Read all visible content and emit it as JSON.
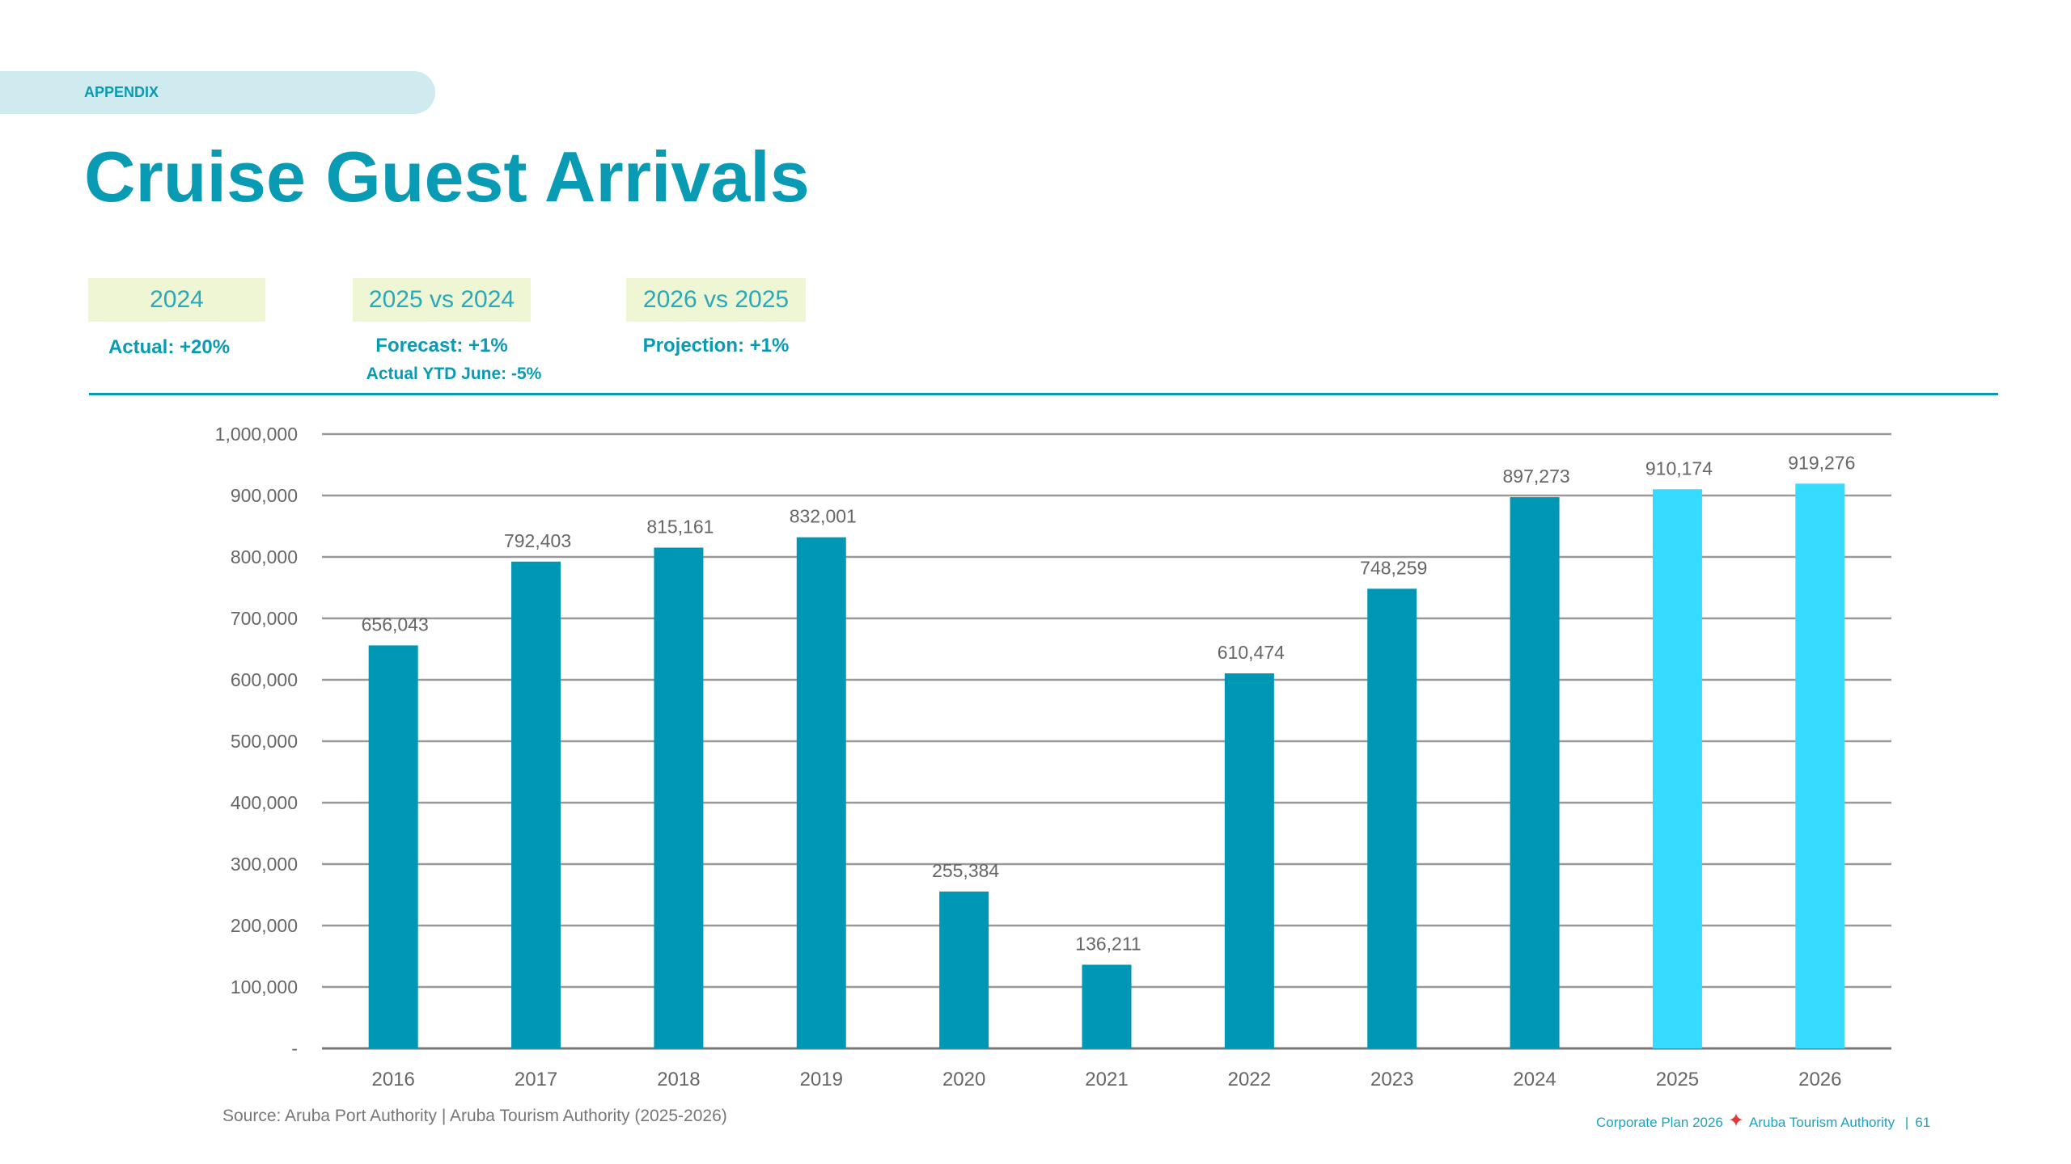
{
  "section_label": "APPENDIX",
  "title": "Cruise Guest Arrivals",
  "kpis": [
    {
      "label": "2024",
      "values": [
        "Actual: +20%"
      ]
    },
    {
      "label": "2025 vs 2024",
      "values": [
        "Forecast: +1%",
        "Actual YTD June: -5%"
      ]
    },
    {
      "label": "2026 vs 2025",
      "values": [
        "Projection: +1%"
      ]
    }
  ],
  "chart_data": {
    "type": "bar",
    "categories": [
      "2016",
      "2017",
      "2018",
      "2019",
      "2020",
      "2021",
      "2022",
      "2023",
      "2024",
      "2025",
      "2026"
    ],
    "values": [
      656043,
      792403,
      815161,
      832001,
      255384,
      136211,
      610474,
      748259,
      897273,
      910174,
      919276
    ],
    "data_labels": [
      "656,043",
      "792,403",
      "815,161",
      "832,001",
      "255,384",
      "136,211",
      "610,474",
      "748,259",
      "897,273",
      "910,174",
      "919,276"
    ],
    "bar_colors": [
      "#0097b5",
      "#0097b5",
      "#0097b5",
      "#0097b5",
      "#0097b5",
      "#0097b5",
      "#0097b5",
      "#0097b5",
      "#0097b5",
      "#36dcff",
      "#36dcff"
    ],
    "ylim": [
      0,
      1000000
    ],
    "yticks": [
      0,
      100000,
      200000,
      300000,
      400000,
      500000,
      600000,
      700000,
      800000,
      900000,
      1000000
    ],
    "ytick_labels": [
      "-",
      "100,000",
      "200,000",
      "300,000",
      "400,000",
      "500,000",
      "600,000",
      "700,000",
      "800,000",
      "900,000",
      "1,000,000"
    ],
    "grid": true,
    "title": "",
    "xlabel": "",
    "ylabel": ""
  },
  "source": "Source: Aruba Port Authority | Aruba Tourism Authority (2025-2026)",
  "footer": {
    "plan": "Corporate Plan 2026",
    "org": "Aruba Tourism Authority",
    "separator": "|",
    "page": "61"
  },
  "colors": {
    "accent": "#0a9bb4",
    "kpi_box": "#eff6d3",
    "star": "#e03a3a"
  }
}
